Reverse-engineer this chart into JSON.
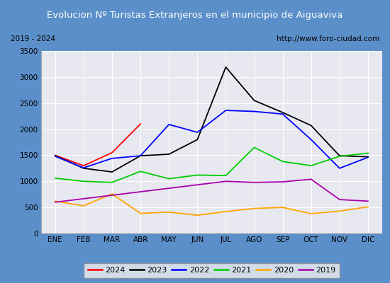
{
  "title": "Evolucion Nº Turistas Extranjeros en el municipio de Aiguaviva",
  "subtitle_left": "2019 - 2024",
  "subtitle_right": "http://www.foro-ciudad.com",
  "months": [
    "ENE",
    "FEB",
    "MAR",
    "ABR",
    "MAY",
    "JUN",
    "JUL",
    "AGO",
    "SEP",
    "OCT",
    "NOV",
    "DIC"
  ],
  "series": {
    "2024": [
      1500,
      1300,
      1550,
      2100,
      null,
      null,
      null,
      null,
      null,
      null,
      null,
      null
    ],
    "2023": [
      1490,
      1250,
      1180,
      1490,
      1520,
      1800,
      3190,
      2550,
      2320,
      2070,
      1490,
      1470
    ],
    "2022": [
      1480,
      1260,
      1440,
      1490,
      2090,
      1940,
      2360,
      2340,
      2290,
      1800,
      1250,
      1460
    ],
    "2021": [
      1060,
      1000,
      980,
      1190,
      1050,
      1120,
      1110,
      1650,
      1380,
      1300,
      1480,
      1540
    ],
    "2020": [
      620,
      530,
      760,
      385,
      410,
      350,
      420,
      480,
      500,
      380,
      430,
      510
    ],
    "2019": [
      600,
      null,
      null,
      null,
      null,
      null,
      1000,
      980,
      990,
      1040,
      650,
      620
    ]
  },
  "colors": {
    "2024": "#ff0000",
    "2023": "#000000",
    "2022": "#0000ff",
    "2021": "#00cc00",
    "2020": "#ffa500",
    "2019": "#aa00aa"
  },
  "ylim": [
    0,
    3500
  ],
  "yticks": [
    0,
    500,
    1000,
    1500,
    2000,
    2500,
    3000,
    3500
  ],
  "title_bg_color": "#5b8fc9",
  "title_text_color": "#ffffff",
  "plot_bg_color": "#e8e8f0",
  "outer_bg_color": "#5b8fc9",
  "subtitle_box_color": "#e0e0e0"
}
